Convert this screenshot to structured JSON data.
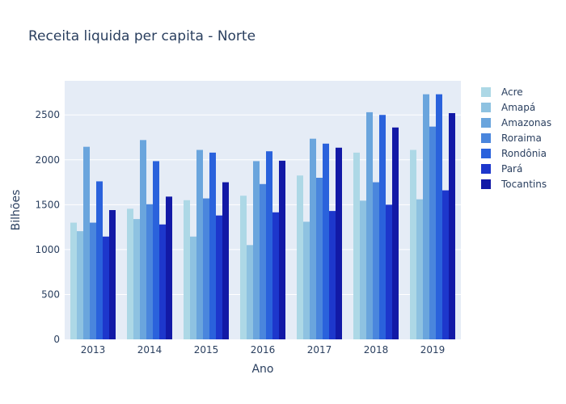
{
  "chart_data": {
    "type": "bar",
    "title": "Receita liquida per capita - Norte",
    "xlabel": "Ano",
    "ylabel": "Bilhões",
    "categories": [
      "2013",
      "2014",
      "2015",
      "2016",
      "2017",
      "2018",
      "2019"
    ],
    "ylim": [
      0,
      2880
    ],
    "yticks": [
      0,
      500,
      1000,
      1500,
      2000,
      2500
    ],
    "grid": true,
    "legend_position": "right",
    "plot_background": "#e5ecf6",
    "series": [
      {
        "name": "Acre",
        "color": "#add8e6",
        "values": [
          1300,
          1455,
          1550,
          1600,
          1825,
          2080,
          2110
        ]
      },
      {
        "name": "Amapá",
        "color": "#8ec2e1",
        "values": [
          1205,
          1340,
          1145,
          1050,
          1310,
          1545,
          1560
        ]
      },
      {
        "name": "Amazonas",
        "color": "#6aa5dd",
        "values": [
          2145,
          2220,
          2110,
          1985,
          2235,
          2530,
          2730
        ]
      },
      {
        "name": "Roraima",
        "color": "#4a86dd",
        "values": [
          1300,
          1505,
          1570,
          1730,
          1800,
          1750,
          2370
        ]
      },
      {
        "name": "Rondônia",
        "color": "#2a62dc",
        "values": [
          1760,
          1985,
          2080,
          2095,
          2180,
          2500,
          2730
        ]
      },
      {
        "name": "Pará",
        "color": "#1d37cc",
        "values": [
          1145,
          1280,
          1380,
          1415,
          1430,
          1500,
          1660
        ]
      },
      {
        "name": "Tocantins",
        "color": "#1219a6",
        "values": [
          1440,
          1590,
          1750,
          1990,
          2135,
          2360,
          2520
        ]
      }
    ]
  }
}
